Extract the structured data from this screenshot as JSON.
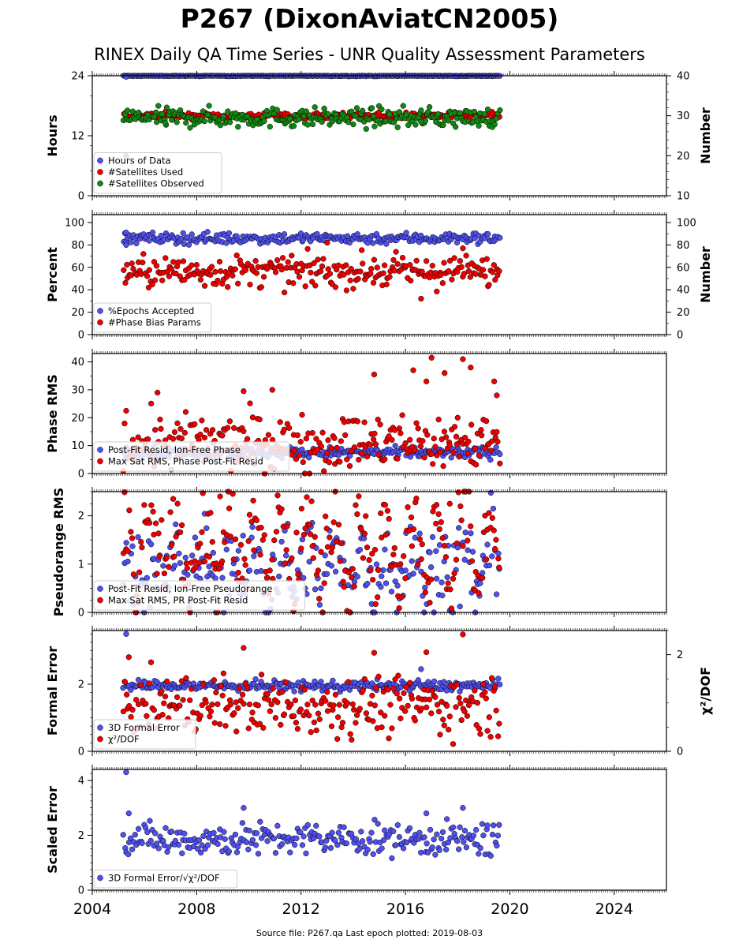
{
  "header": {
    "title": "P267 (DixonAviatCN2005)",
    "subtitle": "RINEX Daily QA Time Series - UNR Quality Assessment Parameters"
  },
  "footer": {
    "text": "Source file: P267.qa Last epoch plotted: 2019-08-03"
  },
  "colors": {
    "blue": "#5050ee",
    "red": "#ee0000",
    "green": "#118811"
  },
  "chart_data": [
    {
      "type": "scatter",
      "ylabel": "Hours",
      "ylim": [
        0,
        24
      ],
      "yticks": [
        "0",
        "12",
        "24"
      ],
      "y2label": "Number",
      "y2lim": [
        10,
        40
      ],
      "y2ticks": [
        "10",
        "20",
        "30",
        "40"
      ],
      "xlim": [
        2004,
        2026
      ],
      "xticks": [
        "2004",
        "2008",
        "2012",
        "2016",
        "2020",
        "2024"
      ],
      "legend": "lower-left",
      "series": [
        {
          "name": "Hours of Data",
          "color": "#5050ee",
          "axis": "left",
          "x_start": 2005.2,
          "x_end": 2019.6,
          "base": 24,
          "spread": 0.05,
          "outliers": [
            [
              2005.3,
              23.8
            ]
          ]
        },
        {
          "name": "#Satellites Used",
          "color": "#ee0000",
          "axis": "right",
          "x_start": 2005.2,
          "x_end": 2019.6,
          "base": 30,
          "spread": 0.4,
          "outliers": [
            [
              2005.3,
              29.8
            ],
            [
              2009.5,
              30.5
            ]
          ]
        },
        {
          "name": "#Satellites Observed",
          "color": "#118811",
          "axis": "right",
          "x_start": 2005.2,
          "x_end": 2019.6,
          "base": 29.5,
          "spread": 1.2,
          "outliers": [
            [
              2005.3,
              20.0
            ],
            [
              2006.8,
              28.2
            ],
            [
              2016.6,
              28.5
            ]
          ]
        }
      ]
    },
    {
      "type": "scatter",
      "ylabel": "Percent",
      "ylim": [
        0,
        107
      ],
      "yticks": [
        "0",
        "20",
        "40",
        "60",
        "80",
        "100"
      ],
      "y2label": "Number",
      "y2lim": [
        0,
        107
      ],
      "y2ticks": [
        "0",
        "20",
        "40",
        "60",
        "80",
        "100"
      ],
      "xlim": [
        2004,
        2026
      ],
      "xticks": [
        "2004",
        "2008",
        "2012",
        "2016",
        "2020",
        "2024"
      ],
      "legend": "lower-left",
      "series": [
        {
          "name": "%Epochs Accepted",
          "color": "#5050ee",
          "axis": "left",
          "x_start": 2005.2,
          "x_end": 2019.6,
          "base": 86,
          "spread": 2.5,
          "outliers": [
            [
              2005.3,
              91
            ],
            [
              2005.3,
              80
            ]
          ]
        },
        {
          "name": "#Phase Bias Params",
          "color": "#ee0000",
          "axis": "right",
          "x_start": 2005.2,
          "x_end": 2019.6,
          "base": 56,
          "spread": 7,
          "outliers": [
            [
              2016.6,
              32
            ],
            [
              2018.2,
              77
            ],
            [
              2013.0,
              82
            ]
          ]
        }
      ]
    },
    {
      "type": "scatter",
      "ylabel": "Phase RMS",
      "ylim": [
        0,
        43
      ],
      "yticks": [
        "0",
        "10",
        "20",
        "30",
        "40"
      ],
      "xlim": [
        2004,
        2026
      ],
      "xticks": [
        "2004",
        "2008",
        "2012",
        "2016",
        "2020",
        "2024"
      ],
      "legend": "lower-left",
      "series": [
        {
          "name": "Post-Fit Resid, Ion-Free Phase",
          "color": "#5050ee",
          "axis": "left",
          "x_start": 2005.2,
          "x_end": 2019.6,
          "base": 7.5,
          "spread": 1.0,
          "outliers": []
        },
        {
          "name": "Max Sat RMS, Phase Post-Fit Resid",
          "color": "#ee0000",
          "axis": "left",
          "x_start": 2005.2,
          "x_end": 2019.6,
          "base": 11,
          "spread": 5,
          "outliers": [
            [
              2017.0,
              41.5
            ],
            [
              2018.2,
              41
            ],
            [
              2017.5,
              36
            ],
            [
              2016.3,
              37
            ],
            [
              2018.5,
              38
            ],
            [
              2014.8,
              35.5
            ],
            [
              2019.4,
              33
            ],
            [
              2019.5,
              28
            ],
            [
              2006.5,
              29
            ],
            [
              2009.8,
              29.5
            ],
            [
              2010.9,
              30
            ],
            [
              2016.8,
              33
            ],
            [
              2018.0,
              20
            ],
            [
              2005.3,
              22.5
            ]
          ]
        }
      ]
    },
    {
      "type": "scatter",
      "ylabel": "Pseudorange RMS",
      "ylim": [
        0,
        2.5
      ],
      "yticks": [
        "0",
        "1",
        "2"
      ],
      "xlim": [
        2004,
        2026
      ],
      "xticks": [
        "2004",
        "2008",
        "2012",
        "2016",
        "2020",
        "2024"
      ],
      "legend": "lower-left",
      "series": [
        {
          "name": "Post-Fit Resid, Ion-Free Pseudorange",
          "color": "#5050ee",
          "axis": "left",
          "x_start": 2005.2,
          "x_end": 2019.6,
          "base": 0.9,
          "spread": 0.45,
          "seasonal": 0.35,
          "outliers": []
        },
        {
          "name": "Max Sat RMS, PR Post-Fit Resid",
          "color": "#ee0000",
          "axis": "left",
          "x_start": 2005.2,
          "x_end": 2019.6,
          "base": 1.35,
          "spread": 0.45,
          "seasonal": 0.7,
          "outliers": [
            [
              2008.9,
              2.4
            ],
            [
              2007.1,
              2.35
            ],
            [
              2017.7,
              2.25
            ],
            [
              2012.4,
              2.3
            ]
          ]
        }
      ]
    },
    {
      "type": "scatter",
      "ylabel": "Formal Error",
      "ylim": [
        0,
        3.6
      ],
      "yticks": [
        "0",
        "2"
      ],
      "y2label": "χ²/DOF",
      "y2lim": [
        0,
        2.5
      ],
      "y2ticks": [
        "0",
        "2"
      ],
      "xlim": [
        2004,
        2026
      ],
      "xticks": [
        "2004",
        "2008",
        "2012",
        "2016",
        "2020",
        "2024"
      ],
      "legend": "lower-left",
      "series": [
        {
          "name": "3D Formal Error",
          "color": "#5050ee",
          "axis": "left",
          "x_start": 2005.2,
          "x_end": 2019.6,
          "base": 1.95,
          "spread": 0.08,
          "outliers": [
            [
              2005.3,
              3.5
            ],
            [
              2016.6,
              2.45
            ]
          ]
        },
        {
          "name": "χ²/DOF",
          "color": "#ee0000",
          "axis": "right",
          "x_start": 2005.2,
          "x_end": 2019.6,
          "base": 0.95,
          "spread": 0.3,
          "outliers": [
            [
              2018.2,
              2.42
            ],
            [
              2009.8,
              2.14
            ],
            [
              2005.4,
              1.95
            ],
            [
              2014.8,
              2.04
            ],
            [
              2016.8,
              2.05
            ]
          ]
        }
      ]
    },
    {
      "type": "scatter",
      "ylabel": "Scaled Error",
      "ylim": [
        0,
        4.4
      ],
      "yticks": [
        "0",
        "2",
        "4"
      ],
      "xlim": [
        2004,
        2026
      ],
      "xticks": [
        "2004",
        "2008",
        "2012",
        "2016",
        "2020",
        "2024"
      ],
      "legend": "lower-left",
      "series": [
        {
          "name": "3D Formal Error/√χ²/DOF",
          "color": "#5050ee",
          "axis": "left",
          "x_start": 2005.2,
          "x_end": 2019.6,
          "base": 1.85,
          "spread": 0.3,
          "outliers": [
            [
              2005.3,
              4.3
            ],
            [
              2009.8,
              3.0
            ],
            [
              2018.2,
              3.0
            ],
            [
              2005.4,
              2.8
            ],
            [
              2016.8,
              2.8
            ]
          ]
        }
      ]
    }
  ]
}
